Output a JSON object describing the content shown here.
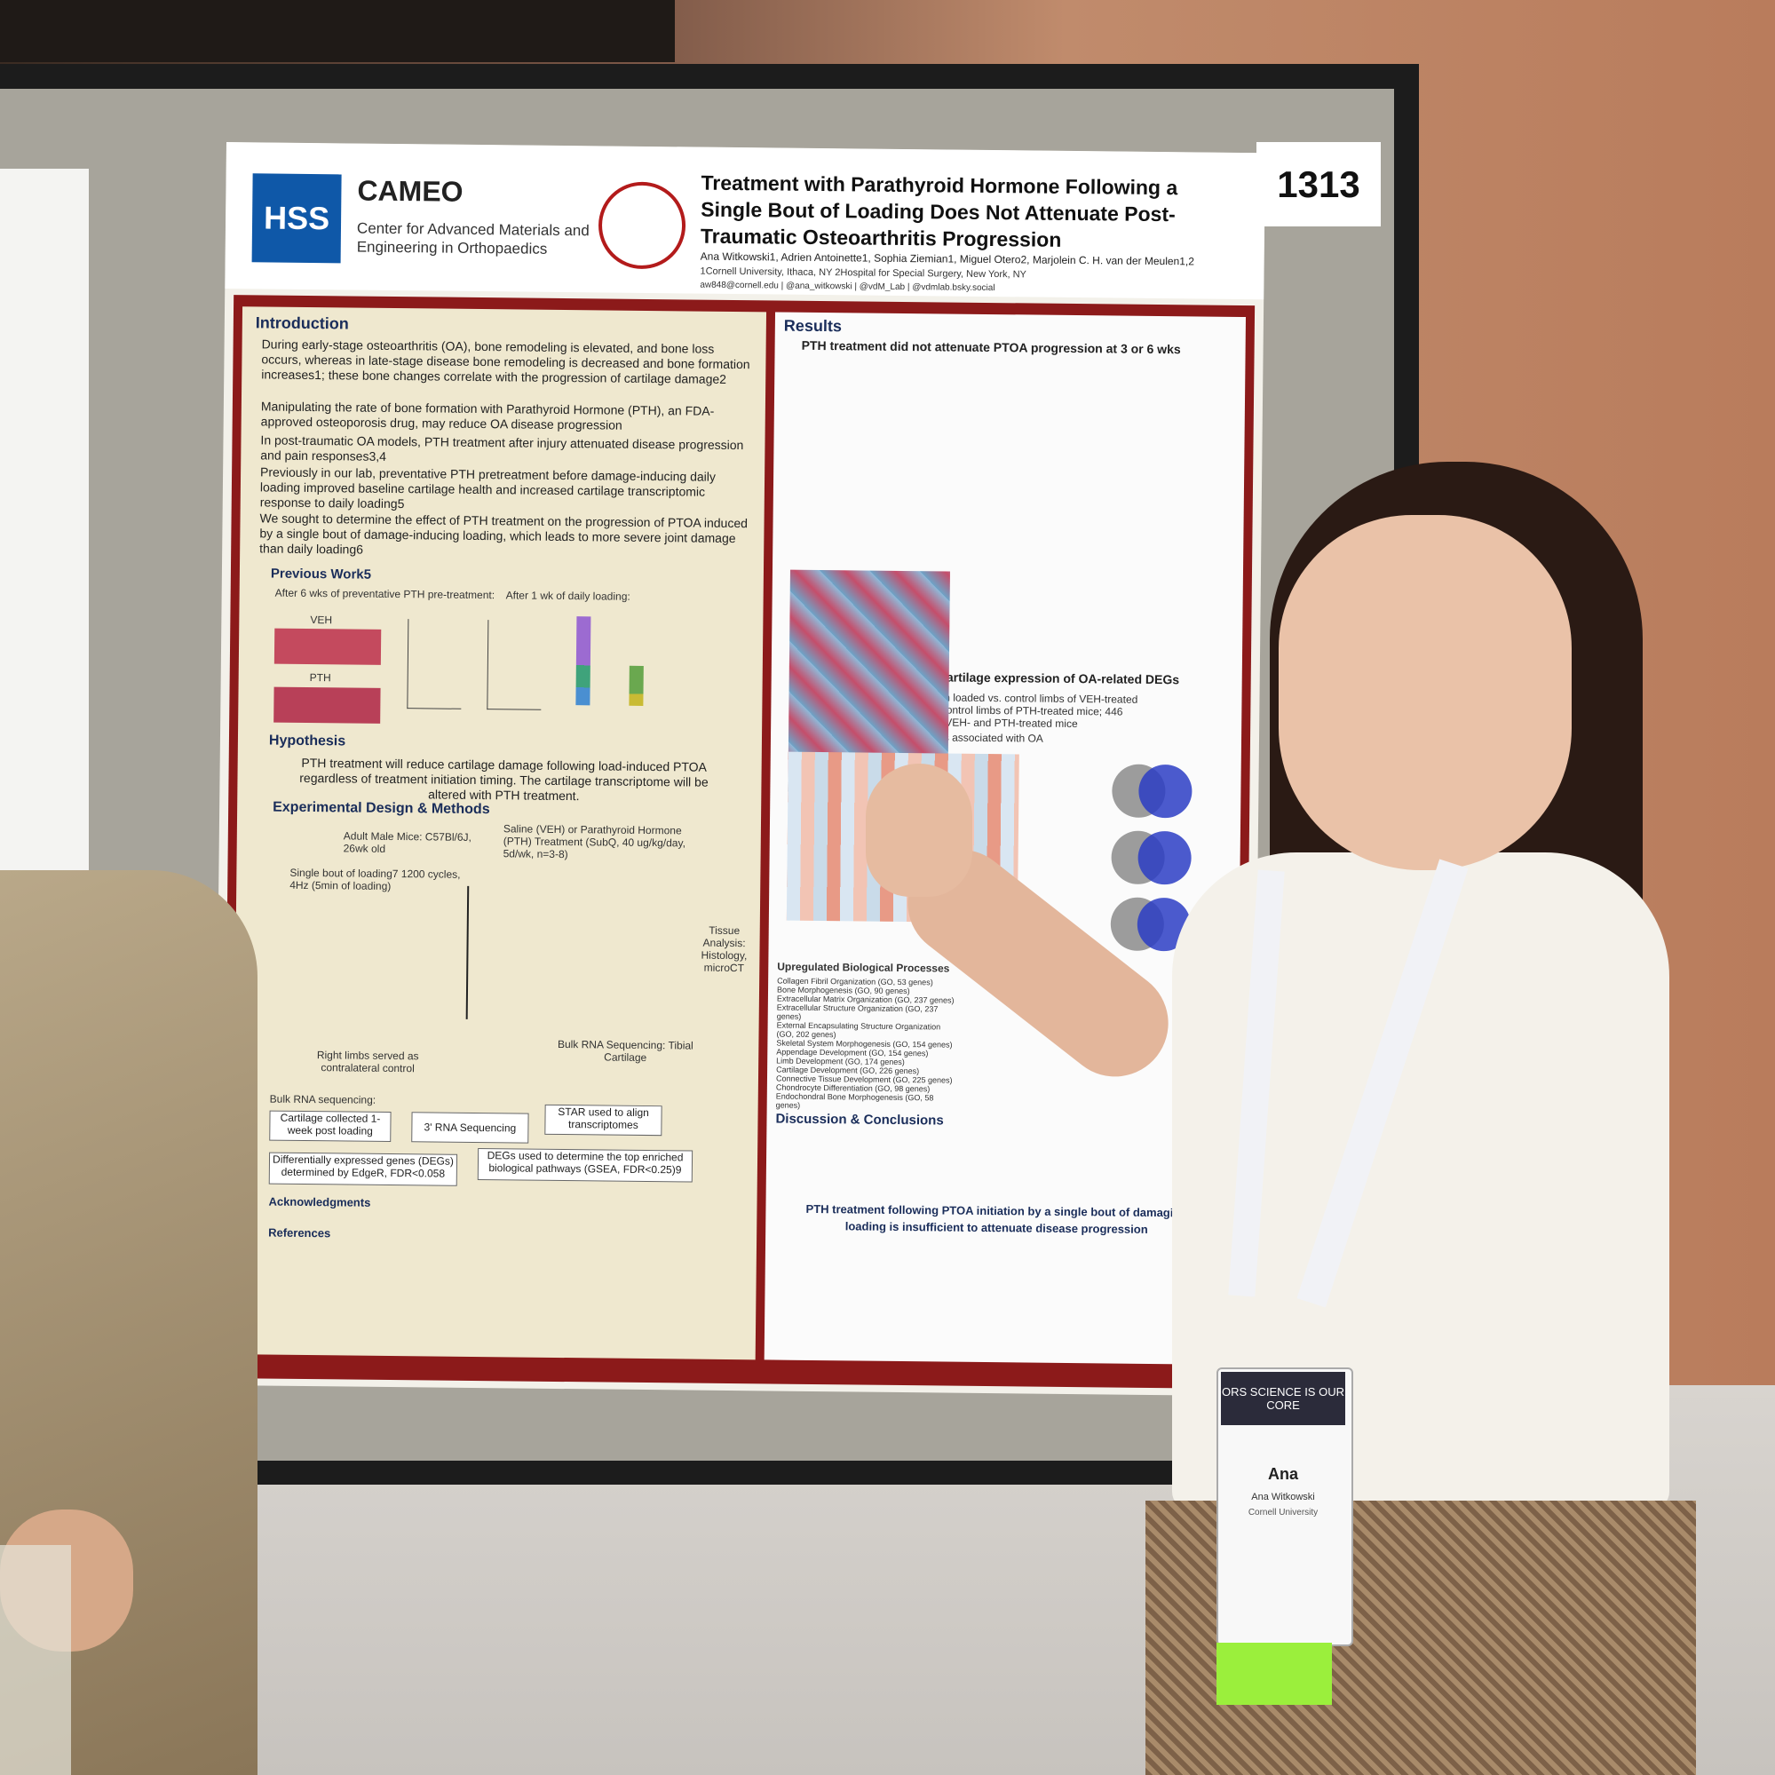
{
  "poster": {
    "number": "1313",
    "logo_hss": "HSS",
    "org_name": "CAMEO",
    "org_subtitle": "Center for Advanced Materials and Engineering in Orthopaedics",
    "title": "Treatment with Parathyroid Hormone Following a Single Bout of Loading Does Not Attenuate Post-Traumatic Osteoarthritis Progression",
    "authors": "Ana Witkowski1, Adrien Antoinette1, Sophia Ziemian1, Miguel Otero2, Marjolein C. H. van der Meulen1,2",
    "affiliations": "1Cornell University, Ithaca, NY 2Hospital for Special Surgery, New York, NY",
    "contact": "aw848@cornell.edu | @ana_witkowski | @vdM_Lab | @vdmlab.bsky.social",
    "sections": {
      "introduction": "Introduction",
      "previous_work": "Previous Work5",
      "hypothesis": "Hypothesis",
      "methods": "Experimental Design & Methods",
      "results": "Results",
      "discussion": "Discussion & Conclusions",
      "acknowledgments": "Acknowledgments",
      "references": "References"
    },
    "intro_bullets": [
      "During early-stage osteoarthritis (OA), bone remodeling is elevated, and bone loss occurs, whereas in late-stage disease bone remodeling is decreased and bone formation increases1; these bone changes correlate with the progression of cartilage damage2",
      "Manipulating the rate of bone formation with Parathyroid Hormone (PTH), an FDA-approved osteoporosis drug, may reduce OA disease progression",
      "In post-traumatic OA models, PTH treatment after injury attenuated disease progression and pain responses3,4",
      "Previously in our lab, preventative PTH pretreatment before damage-inducing daily loading improved baseline cartilage health and increased cartilage transcriptomic response to daily loading5",
      "We sought to determine the effect of PTH treatment on the progression of PTOA induced by a single bout of damage-inducing loading, which leads to more severe joint damage than daily loading6"
    ],
    "hypothesis_text": "PTH treatment will reduce cartilage damage following load-induced PTOA regardless of treatment initiation timing. The cartilage transcriptome will be altered with PTH treatment.",
    "prev_work_labels": {
      "left": "After 6 wks of preventative PTH pre-treatment:",
      "right": "After 1 wk of daily loading:",
      "veh": "VEH",
      "pth": "PTH"
    },
    "methods": {
      "mice": "Adult Male Mice: C57Bl/6J, 26wk old",
      "loading": "Single bout of loading7 1200 cycles, 4Hz (5min of loading)",
      "treatment": "Saline (VEH) or Parathyroid Hormone (PTH) Treatment (SubQ, 40 ug/kg/day, 5d/wk, n=3-8)",
      "tissue": "Tissue Analysis: Histology, microCT",
      "rna": "Bulk RNA Sequencing: Tibial Cartilage",
      "control": "Right limbs served as contralateral control",
      "bulk_label": "Bulk RNA sequencing:",
      "steps": [
        "Cartilage collected 1-week post loading",
        "3' RNA Sequencing",
        "STAR used to align transcriptomes",
        "Differentially expressed genes (DEGs) determined by EdgeR, FDR<0.058",
        "DEGs used to determine the top enriched biological pathways (GSEA, FDR<0.25)9"
      ]
    },
    "results": {
      "heading1": "PTH treatment did not attenuate PTOA progression at 3 or 6 wks",
      "heading2": "PTH treatment altered cartilage expression of OA-related DEGs",
      "rna_summary": "RNA-seq identified 775 DEGs in loaded vs. control limbs of VEH-treated mice; 704 DEGs in loaded vs. control limbs of PTH-treated mice; 446 DEGs were the same between VEH- and PTH-treated mice",
      "heatmap_title": "PTH treatment upregulated genes associated with OA attenuation (Dact1, Fgfr3)",
      "pathways_title": "Upregulated Biological Processes",
      "pathways": [
        "Collagen Fibril Organization (GO, 53 genes)",
        "Bone Morphogenesis (GO, 90 genes)",
        "Extracellular Matrix Organization (GO, 237 genes)",
        "Extracellular Structure Organization (GO, 237 genes)",
        "External Encapsulating Structure Organization (GO, 202 genes)",
        "Skeletal System Morphogenesis (GO, 154 genes)",
        "Appendage Development (GO, 154 genes)",
        "Limb Development (GO, 174 genes)",
        "Cartilage Development (GO, 226 genes)",
        "Connective Tissue Development (GO, 225 genes)",
        "Chondrocyte Differentiation (GO, 98 genes)",
        "Endochondral Bone Morphogenesis (GO, 58 genes)"
      ]
    },
    "conclusion": "PTH treatment following PTOA initiation by a single bout of damaging loading is insufficient to attenuate disease progression"
  },
  "badge": {
    "header": "ORS SCIENCE IS OUR CORE",
    "first_name": "Ana",
    "full_name": "Ana Witkowski",
    "institution": "Cornell University"
  },
  "colors": {
    "poster_border": "#8c1a1a",
    "hss_blue": "#0f58a8",
    "section_blue": "#1a2d5a"
  }
}
